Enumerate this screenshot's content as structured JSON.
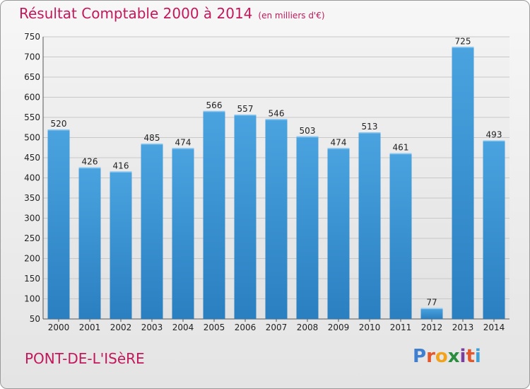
{
  "title": "Résultat Comptable 2000 à 2014",
  "unit_note": "(en milliers d'€)",
  "commune": "PONT-DE-L'ISèRE",
  "brand": {
    "letters": [
      "P",
      "r",
      "o",
      "x",
      "i",
      "t",
      "i"
    ],
    "colors": [
      "#3f7fd0",
      "#e2572b",
      "#f2a31b",
      "#2a8d3e",
      "#7b3fa0",
      "#e2572b",
      "#3fa0d6"
    ]
  },
  "colors": {
    "bar": "#4aa3df",
    "bar_dark": "#2a7fc0",
    "accent": "#c2185b"
  },
  "chart_data": {
    "type": "bar",
    "categories": [
      "2000",
      "2001",
      "2002",
      "2003",
      "2004",
      "2005",
      "2006",
      "2007",
      "2008",
      "2009",
      "2010",
      "2011",
      "2012",
      "2013",
      "2014"
    ],
    "values": [
      520,
      426,
      416,
      485,
      474,
      566,
      557,
      546,
      503,
      474,
      513,
      461,
      77,
      725,
      493
    ],
    "ylim": [
      50,
      750
    ],
    "yticks": [
      50,
      100,
      150,
      200,
      250,
      300,
      350,
      400,
      450,
      500,
      550,
      600,
      650,
      700,
      750
    ],
    "grid": true
  }
}
